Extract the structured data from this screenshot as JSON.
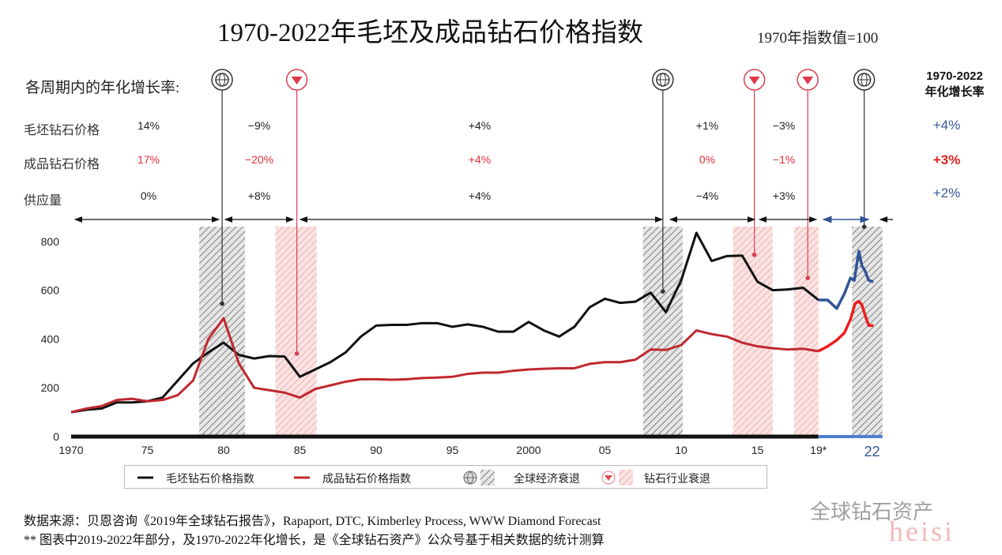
{
  "title": "1970-2022年毛坯及成品钻石价格指数",
  "baseline_note": "1970年指数值=100",
  "periods_header": "各周期内的年化增长率:",
  "rows": {
    "rough": "毛坯钻石价格",
    "polished": "成品钻石价格",
    "supply": "供应量"
  },
  "period_growth": [
    {
      "rough": "14%",
      "polished": "17%",
      "supply": "0%"
    },
    {
      "rough": "−9%",
      "polished": "−20%",
      "supply": "+8%"
    },
    {
      "rough": "+4%",
      "polished": "+4%",
      "supply": "+4%"
    },
    {
      "rough": "+1%",
      "polished": "0%",
      "supply": "−4%"
    },
    {
      "rough": "−3%",
      "polished": "−1%",
      "supply": "+3%"
    }
  ],
  "total": {
    "header_line1": "1970-2022",
    "header_line2": "年化增长率",
    "rough": "+4%",
    "polished": "+3%",
    "supply": "+2%"
  },
  "colors": {
    "rough": "#111111",
    "polished": "#c0282f",
    "forecast_rough": "#2f5597",
    "forecast_polished": "#ee1c1c",
    "blue_text": "#3a5a9c",
    "red_text": "#e02020"
  },
  "legend": {
    "rough": "毛坯钻石价格指数",
    "polished": "成品钻石价格指数",
    "global": "全球经济衰退",
    "industry": "钻石行业衰退"
  },
  "source_line1": "数据来源：贝恩咨询《2019年全球钻石报告》，Rapaport, DTC, Kimberley Process, WWW Diamond Forecast",
  "source_line2": "** 图表中2019-2022年部分，及1970-2022年化增长，是《全球钻石资产》公众号基于相关数据的统计测算",
  "watermark": "全球钻石资产",
  "watermark2": "heisi",
  "chart_data": {
    "type": "line",
    "title": "1970-2022年毛坯及成品钻石价格指数",
    "ylim": [
      0,
      860
    ],
    "yticks": [
      0,
      200,
      400,
      600,
      800
    ],
    "xlim": [
      1970,
      2023.2
    ],
    "xticks": [
      {
        "x": 1970,
        "label": "1970"
      },
      {
        "x": 1975,
        "label": "75"
      },
      {
        "x": 1980,
        "label": "80"
      },
      {
        "x": 1985,
        "label": "85"
      },
      {
        "x": 1990,
        "label": "90"
      },
      {
        "x": 1995,
        "label": "95"
      },
      {
        "x": 2000,
        "label": "2000"
      },
      {
        "x": 2005,
        "label": "05"
      },
      {
        "x": 2010,
        "label": "10"
      },
      {
        "x": 2015,
        "label": "15"
      },
      {
        "x": 2019,
        "label": "19*"
      },
      {
        "x": 2022,
        "label": "22"
      }
    ],
    "series": [
      {
        "name": "毛坯钻石价格指数",
        "key": "rough",
        "x": [
          1970,
          1971,
          1972,
          1973,
          1974,
          1975,
          1976,
          1977,
          1978,
          1979,
          1980,
          1981,
          1982,
          1983,
          1984,
          1985,
          1986,
          1987,
          1988,
          1989,
          1990,
          1991,
          1992,
          1993,
          1994,
          1995,
          1996,
          1997,
          1998,
          1999,
          2000,
          2001,
          2002,
          2003,
          2004,
          2005,
          2006,
          2007,
          2008,
          2009,
          2010,
          2011,
          2012,
          2013,
          2014,
          2015,
          2016,
          2017,
          2018,
          2019
        ],
        "values": [
          100,
          110,
          115,
          140,
          140,
          145,
          160,
          230,
          300,
          345,
          385,
          335,
          320,
          330,
          328,
          245,
          275,
          305,
          345,
          410,
          455,
          458,
          458,
          465,
          465,
          450,
          460,
          450,
          430,
          430,
          470,
          435,
          410,
          450,
          530,
          565,
          548,
          553,
          590,
          510,
          640,
          835,
          720,
          740,
          742,
          635,
          600,
          603,
          610,
          560
        ]
      },
      {
        "name": "成品钻石价格指数",
        "key": "polished",
        "x": [
          1970,
          1971,
          1972,
          1973,
          1974,
          1975,
          1976,
          1977,
          1978,
          1979,
          1980,
          1981,
          1982,
          1983,
          1984,
          1985,
          1986,
          1987,
          1988,
          1989,
          1990,
          1991,
          1992,
          1993,
          1994,
          1995,
          1996,
          1997,
          1998,
          1999,
          2000,
          2001,
          2002,
          2003,
          2004,
          2005,
          2006,
          2007,
          2008,
          2009,
          2010,
          2011,
          2012,
          2013,
          2014,
          2015,
          2016,
          2017,
          2018,
          2019
        ],
        "values": [
          100,
          115,
          125,
          150,
          155,
          145,
          150,
          170,
          230,
          400,
          485,
          300,
          200,
          190,
          180,
          160,
          195,
          210,
          225,
          235,
          235,
          233,
          235,
          240,
          242,
          245,
          257,
          262,
          262,
          270,
          275,
          278,
          280,
          280,
          298,
          305,
          305,
          315,
          357,
          355,
          375,
          435,
          420,
          410,
          385,
          370,
          362,
          357,
          360,
          350
        ]
      },
      {
        "name": "毛坯钻石价格指数(测算)",
        "key": "forecast_rough",
        "x": [
          2019,
          2019.6,
          2020.2,
          2020.7,
          2021.1,
          2021.35,
          2021.65,
          2021.85,
          2022.05,
          2022.3,
          2022.6
        ],
        "values": [
          560,
          560,
          525,
          585,
          650,
          640,
          760,
          700,
          680,
          640,
          635
        ]
      },
      {
        "name": "成品钻石价格指数(测算)",
        "key": "forecast_polished",
        "x": [
          2019,
          2019.6,
          2020.2,
          2020.7,
          2021.1,
          2021.4,
          2021.65,
          2021.85,
          2022.1,
          2022.3,
          2022.6
        ],
        "values": [
          350,
          370,
          395,
          425,
          480,
          545,
          555,
          540,
          490,
          455,
          455
        ]
      }
    ],
    "recessions": [
      {
        "type": "global",
        "from": 1978.4,
        "to": 1981.4
      },
      {
        "type": "industry",
        "from": 1983.4,
        "to": 1986.1
      },
      {
        "type": "global",
        "from": 2007.5,
        "to": 2010.1
      },
      {
        "type": "industry",
        "from": 2013.4,
        "to": 2016.0
      },
      {
        "type": "industry",
        "from": 2017.4,
        "to": 2019.0
      },
      {
        "type": "global",
        "from": 2021.2,
        "to": 2023.2
      }
    ],
    "markers": [
      {
        "type": "global",
        "year": 1979.9,
        "value": 545
      },
      {
        "type": "industry",
        "year": 1984.8,
        "value": 340
      },
      {
        "type": "global",
        "year": 2008.8,
        "value": 595
      },
      {
        "type": "industry",
        "year": 2014.8,
        "value": 745
      },
      {
        "type": "industry",
        "year": 2018.3,
        "value": 650
      },
      {
        "type": "global",
        "year": 2022.0,
        "value": 860
      }
    ]
  }
}
